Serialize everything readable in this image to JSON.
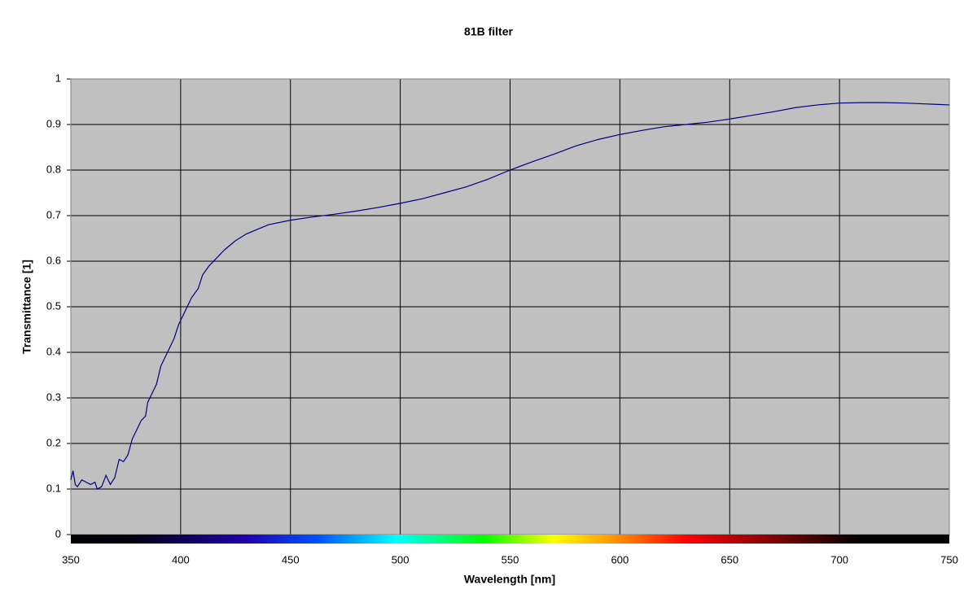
{
  "chart_data": {
    "type": "line",
    "title": "81B filter",
    "x_label": "Wavelength [nm]",
    "y_label": "Transmittance [1]",
    "x": [
      350,
      351,
      352,
      353,
      355,
      357,
      359,
      361,
      362,
      364,
      366,
      368,
      370,
      372,
      374,
      376,
      378,
      380,
      382,
      384,
      385,
      387,
      389,
      391,
      393,
      395,
      397,
      399,
      402,
      405,
      408,
      410,
      413,
      416,
      420,
      425,
      430,
      435,
      440,
      450,
      460,
      470,
      480,
      490,
      500,
      510,
      520,
      530,
      540,
      550,
      560,
      570,
      580,
      590,
      600,
      610,
      620,
      630,
      640,
      650,
      660,
      670,
      680,
      690,
      700,
      710,
      720,
      730,
      740,
      750
    ],
    "series": [
      {
        "color": "#000080",
        "values": [
          0.12,
          0.14,
          0.11,
          0.105,
          0.12,
          0.115,
          0.11,
          0.115,
          0.1,
          0.105,
          0.13,
          0.11,
          0.125,
          0.165,
          0.16,
          0.175,
          0.21,
          0.23,
          0.25,
          0.26,
          0.29,
          0.31,
          0.33,
          0.37,
          0.39,
          0.41,
          0.43,
          0.46,
          0.49,
          0.52,
          0.54,
          0.57,
          0.59,
          0.605,
          0.625,
          0.645,
          0.66,
          0.67,
          0.68,
          0.69,
          0.697,
          0.703,
          0.71,
          0.718,
          0.727,
          0.737,
          0.75,
          0.763,
          0.78,
          0.8,
          0.818,
          0.835,
          0.853,
          0.867,
          0.878,
          0.887,
          0.895,
          0.9,
          0.905,
          0.912,
          0.92,
          0.928,
          0.937,
          0.943,
          0.947,
          0.948,
          0.948,
          0.947,
          0.945,
          0.943
        ]
      }
    ],
    "xlim": [
      350,
      750
    ],
    "xticks": [
      350,
      400,
      450,
      500,
      550,
      600,
      650,
      700,
      750
    ],
    "ylim": [
      0,
      1
    ],
    "yticks": [
      0,
      0.1,
      0.2,
      0.3,
      0.4,
      0.5,
      0.6,
      0.7,
      0.8,
      0.9,
      1
    ],
    "grid": true,
    "background": "#c0c0c0"
  }
}
